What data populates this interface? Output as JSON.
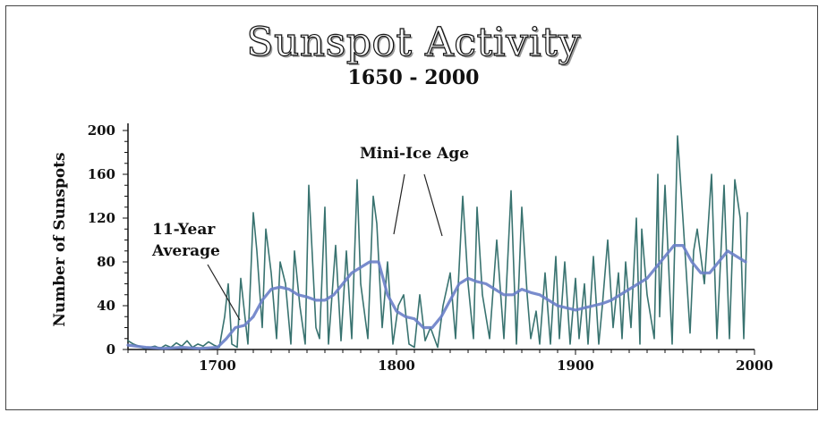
{
  "chart_data": {
    "type": "line",
    "title": "Sunspot Activity",
    "subtitle": "1650 - 2000",
    "xlabel": "",
    "ylabel": "Number of Sunspots",
    "xlim": [
      1650,
      2000
    ],
    "ylim": [
      0,
      200
    ],
    "x_ticks": [
      "1700",
      "1800",
      "1900",
      "2000"
    ],
    "y_ticks": [
      "0",
      "40",
      "80",
      "120",
      "160",
      "200"
    ],
    "grid": false,
    "annotations": [
      "Mini-Ice Age",
      "11-Year",
      "Average"
    ],
    "series": [
      {
        "color": "#2e6b68",
        "x": [
          1650,
          1653,
          1656,
          1659,
          1662,
          1665,
          1668,
          1671,
          1674,
          1677,
          1680,
          1683,
          1686,
          1689,
          1692,
          1695,
          1698,
          1701,
          1704,
          1706,
          1708,
          1711,
          1713,
          1717,
          1720,
          1722,
          1725,
          1727,
          1730,
          1733,
          1735,
          1738,
          1741,
          1743,
          1746,
          1749,
          1751,
          1755,
          1757,
          1760,
          1762,
          1766,
          1769,
          1772,
          1775,
          1778,
          1780,
          1784,
          1787,
          1789,
          1792,
          1795,
          1798,
          1801,
          1804,
          1807,
          1810,
          1813,
          1816,
          1819,
          1823,
          1826,
          1830,
          1833,
          1837,
          1840,
          1843,
          1845,
          1848,
          1852,
          1856,
          1860,
          1864,
          1867,
          1870,
          1873,
          1875,
          1878,
          1880,
          1883,
          1886,
          1889,
          1891,
          1894,
          1897,
          1900,
          1902,
          1905,
          1907,
          1910,
          1913,
          1915,
          1918,
          1921,
          1924,
          1926,
          1928,
          1931,
          1934,
          1936,
          1937,
          1940,
          1944,
          1946,
          1947,
          1950,
          1954,
          1957,
          1960,
          1964,
          1966,
          1968,
          1972,
          1976,
          1979,
          1983,
          1986,
          1989,
          1992,
          1994,
          1996
        ],
        "values": [
          8,
          5,
          3,
          1,
          2,
          3,
          1,
          4,
          2,
          6,
          3,
          8,
          2,
          5,
          3,
          7,
          4,
          2,
          30,
          60,
          5,
          2,
          65,
          5,
          125,
          90,
          20,
          110,
          70,
          10,
          80,
          60,
          5,
          90,
          40,
          5,
          150,
          20,
          10,
          130,
          5,
          95,
          8,
          90,
          10,
          155,
          60,
          10,
          140,
          115,
          20,
          80,
          5,
          40,
          50,
          5,
          2,
          50,
          8,
          20,
          2,
          40,
          70,
          10,
          140,
          60,
          10,
          130,
          50,
          10,
          100,
          10,
          145,
          5,
          130,
          50,
          10,
          35,
          5,
          70,
          5,
          85,
          10,
          80,
          5,
          65,
          10,
          60,
          5,
          85,
          5,
          40,
          100,
          20,
          70,
          10,
          80,
          20,
          120,
          5,
          110,
          50,
          10,
          160,
          30,
          150,
          5,
          195,
          120,
          15,
          90,
          110,
          60,
          160,
          10,
          150,
          10,
          155,
          120,
          10,
          125
        ]
      },
      {
        "name": "11-Year Average",
        "color": "#6a7fc8",
        "x": [
          1650,
          1660,
          1670,
          1680,
          1690,
          1700,
          1705,
          1710,
          1715,
          1720,
          1725,
          1730,
          1735,
          1740,
          1745,
          1750,
          1755,
          1760,
          1765,
          1770,
          1775,
          1780,
          1785,
          1790,
          1795,
          1800,
          1805,
          1810,
          1815,
          1820,
          1825,
          1830,
          1835,
          1840,
          1845,
          1850,
          1855,
          1860,
          1865,
          1870,
          1875,
          1880,
          1885,
          1890,
          1895,
          1900,
          1905,
          1910,
          1915,
          1920,
          1925,
          1930,
          1935,
          1940,
          1945,
          1950,
          1955,
          1960,
          1965,
          1970,
          1975,
          1980,
          1985,
          1990,
          1995
        ],
        "values": [
          4,
          2,
          1,
          2,
          1,
          2,
          10,
          20,
          22,
          30,
          45,
          55,
          57,
          55,
          50,
          48,
          45,
          45,
          50,
          60,
          70,
          75,
          80,
          80,
          50,
          35,
          30,
          28,
          20,
          20,
          30,
          45,
          60,
          65,
          62,
          60,
          55,
          50,
          50,
          55,
          52,
          50,
          45,
          40,
          38,
          36,
          38,
          40,
          42,
          45,
          50,
          55,
          60,
          65,
          75,
          85,
          95,
          95,
          80,
          70,
          70,
          80,
          90,
          85,
          80
        ]
      }
    ]
  }
}
